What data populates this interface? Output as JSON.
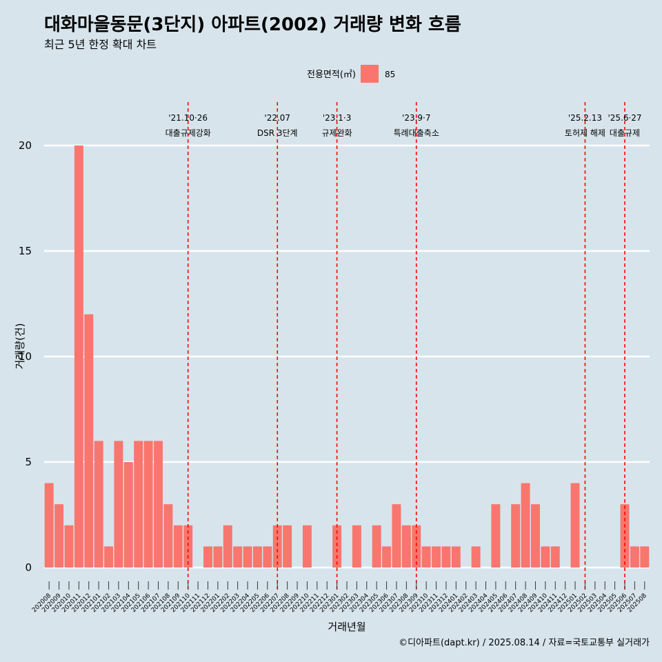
{
  "title": "대화마을동문(3단지) 아파트(2002) 거래량 변화 흐름",
  "subtitle": "최근 5년 한정 확대 차트",
  "caption": "©디아파트(dapt.kr) / 2025.08.14 / 자료=국토교통부 실거래가",
  "legend": {
    "title": "전용면적(㎡)",
    "label": "85",
    "color": "#f8766d"
  },
  "colors": {
    "background": "#d7e4ec",
    "bar": "#f8766d",
    "event_line": "#ff0000",
    "grid": "#ffffff"
  },
  "chart_data": {
    "type": "bar",
    "xlabel": "거래년월",
    "ylabel": "거래량(건)",
    "ylim": [
      0,
      21
    ],
    "yticks": [
      0,
      5,
      10,
      15,
      20
    ],
    "grid": true,
    "legend_position": "top",
    "categories": [
      "202008",
      "202009",
      "202010",
      "202011",
      "202012",
      "202101",
      "202102",
      "202103",
      "202104",
      "202105",
      "202106",
      "202107",
      "202108",
      "202109",
      "202110",
      "202111",
      "202112",
      "202201",
      "202202",
      "202203",
      "202204",
      "202205",
      "202206",
      "202207",
      "202208",
      "202209",
      "202210",
      "202211",
      "202212",
      "202301",
      "202302",
      "202303",
      "202304",
      "202305",
      "202306",
      "202307",
      "202308",
      "202309",
      "202310",
      "202311",
      "202312",
      "202401",
      "202402",
      "202403",
      "202404",
      "202405",
      "202406",
      "202407",
      "202408",
      "202409",
      "202410",
      "202411",
      "202412",
      "202501",
      "202502",
      "202503",
      "202504",
      "202505",
      "202506",
      "202507",
      "202508"
    ],
    "series": [
      {
        "name": "85",
        "values": [
          4,
          3,
          2,
          20,
          12,
          6,
          1,
          6,
          5,
          6,
          6,
          6,
          3,
          2,
          2,
          0,
          1,
          1,
          2,
          1,
          1,
          1,
          1,
          2,
          2,
          0,
          2,
          0,
          0,
          2,
          0,
          2,
          0,
          2,
          1,
          3,
          2,
          2,
          1,
          1,
          1,
          1,
          0,
          1,
          0,
          3,
          0,
          3,
          4,
          3,
          1,
          1,
          0,
          4,
          0,
          0,
          0,
          0,
          3,
          1,
          1
        ]
      }
    ],
    "events": [
      {
        "month": "202110",
        "date": "'21.10·26",
        "label": "대출규제강화"
      },
      {
        "month": "202207",
        "date": "'22.07",
        "label": "DSR 3단계"
      },
      {
        "month": "202301",
        "date": "'23.1·3",
        "label": "규제완화"
      },
      {
        "month": "202309",
        "date": "'23.9·7",
        "label": "특례대출축소"
      },
      {
        "month": "202502",
        "date": "'25.2.13",
        "label": "토허제 해제"
      },
      {
        "month": "202506",
        "date": "'25.6·27",
        "label": "대출규제"
      }
    ]
  }
}
